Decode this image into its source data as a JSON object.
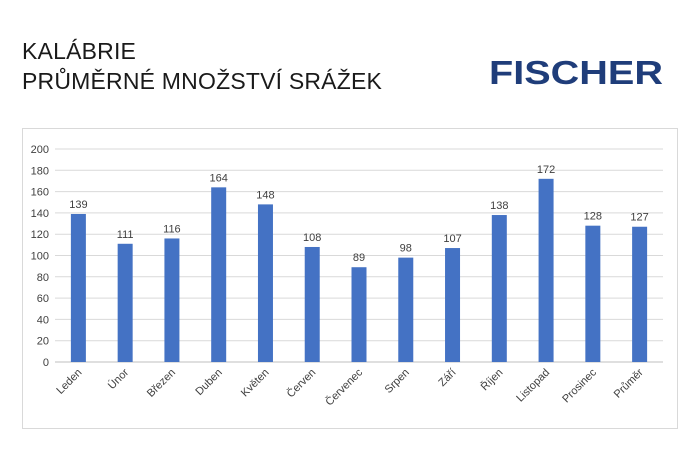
{
  "header": {
    "title_line1": "KALÁBRIE",
    "title_line2": "PRŮMĚRNÉ MNOŽSTVÍ SRÁŽEK",
    "brand": "FISCHER",
    "brand_color": "#1f3d7a"
  },
  "chart_data": {
    "type": "bar",
    "categories": [
      "Leden",
      "Únor",
      "Březen",
      "Duben",
      "Květen",
      "Červen",
      "Červenec",
      "Srpen",
      "Září",
      "Říjen",
      "Listopad",
      "Prosinec",
      "Průměr"
    ],
    "values": [
      139,
      111,
      116,
      164,
      148,
      108,
      89,
      98,
      107,
      138,
      172,
      128,
      127
    ],
    "y_ticks": [
      "0",
      "20",
      "40",
      "60",
      "80",
      "100",
      "120",
      "140",
      "160",
      "180",
      "200"
    ],
    "ylim": [
      0,
      200
    ],
    "bar_color": "#4472c4",
    "grid": true,
    "data_labels": true
  }
}
